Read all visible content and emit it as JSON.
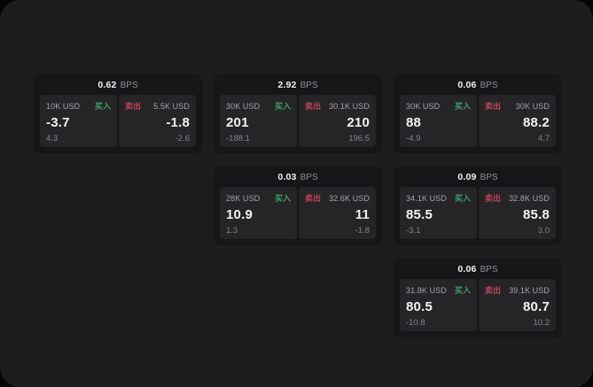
{
  "labels": {
    "bps_unit": "BPS",
    "buy": "买入",
    "sell": "卖出"
  },
  "colors": {
    "panel_bg": "#1d1d1f",
    "card_bg": "#161618",
    "tile_bg": "#252528",
    "buy_green": "#3e9f66",
    "sell_red": "#c24258",
    "value_white": "#f4f4f6",
    "muted_gray": "#a4a4a9"
  },
  "cards": [
    {
      "bps": "0.62",
      "buy": {
        "amount": "10K USD",
        "value": "-3.7",
        "change": "4.3"
      },
      "sell": {
        "amount": "5.5K USD",
        "value": "-1.8",
        "change": "-2.6"
      }
    },
    {
      "bps": "2.92",
      "buy": {
        "amount": "30K USD",
        "value": "201",
        "change": "-188.1"
      },
      "sell": {
        "amount": "30.1K USD",
        "value": "210",
        "change": "196.5"
      }
    },
    {
      "bps": "0.06",
      "buy": {
        "amount": "30K USD",
        "value": "88",
        "change": "-4.9"
      },
      "sell": {
        "amount": "30K USD",
        "value": "88.2",
        "change": "4.7"
      }
    },
    {
      "bps": "0.03",
      "buy": {
        "amount": "28K USD",
        "value": "10.9",
        "change": "1.3"
      },
      "sell": {
        "amount": "32.6K USD",
        "value": "11",
        "change": "-1.8"
      }
    },
    {
      "bps": "0.09",
      "buy": {
        "amount": "34.1K USD",
        "value": "85.5",
        "change": "-3.1"
      },
      "sell": {
        "amount": "32.8K USD",
        "value": "85.8",
        "change": "3.0"
      }
    },
    {
      "bps": "0.06",
      "buy": {
        "amount": "31.8K USD",
        "value": "80.5",
        "change": "-10.8"
      },
      "sell": {
        "amount": "39.1K USD",
        "value": "80.7",
        "change": "10.2"
      }
    }
  ]
}
